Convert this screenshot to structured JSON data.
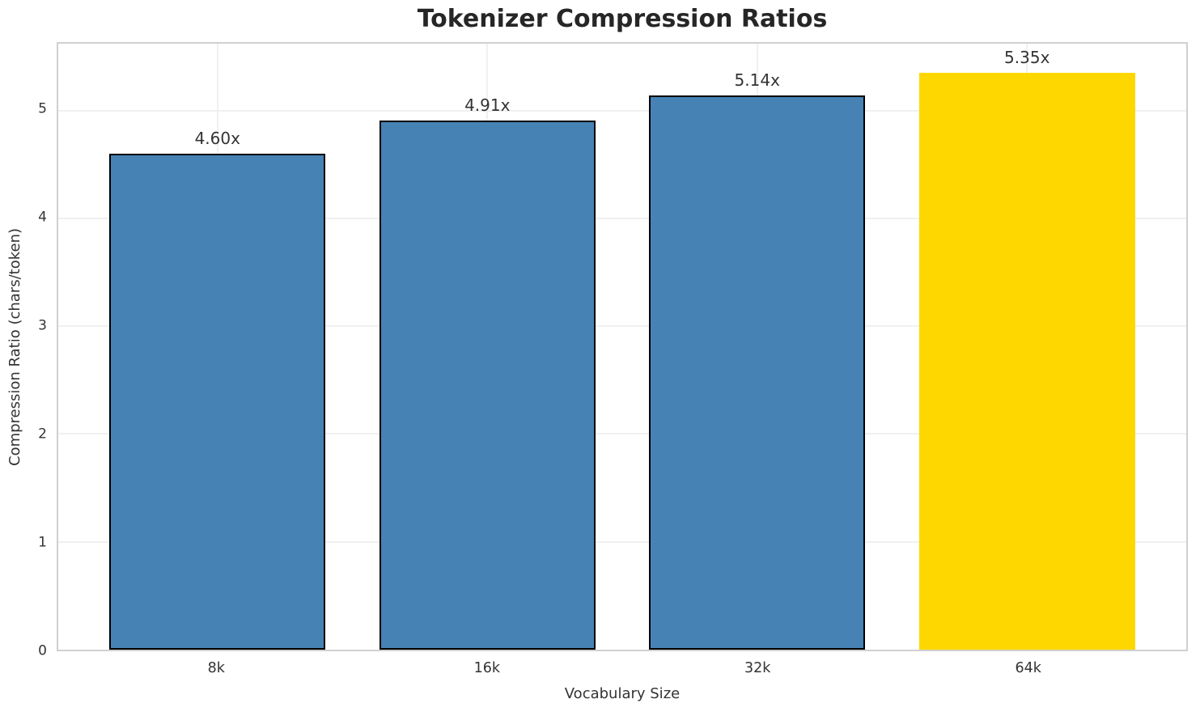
{
  "chart_data": {
    "type": "bar",
    "title": "Tokenizer Compression Ratios",
    "xlabel": "Vocabulary Size",
    "ylabel": "Compression Ratio (chars/token)",
    "categories": [
      "8k",
      "16k",
      "32k",
      "64k"
    ],
    "values": [
      4.6,
      4.91,
      5.14,
      5.35
    ],
    "bar_labels": [
      "4.60x",
      "4.91x",
      "5.14x",
      "5.35x"
    ],
    "bar_colors": [
      "#4682b4",
      "#4682b4",
      "#4682b4",
      "#ffd700"
    ],
    "bar_has_edge": [
      true,
      true,
      true,
      false
    ],
    "bar_edge_color": "#000000",
    "yticks": [
      "0",
      "1",
      "2",
      "3",
      "4",
      "5"
    ],
    "ylim": [
      0,
      5.62
    ],
    "grid": true,
    "legend_position": "none",
    "colors": {
      "grid": "#f0f0f0",
      "spine": "#d0d0d0",
      "title_text": "#262626",
      "text": "#333333",
      "background": "#ffffff"
    }
  }
}
